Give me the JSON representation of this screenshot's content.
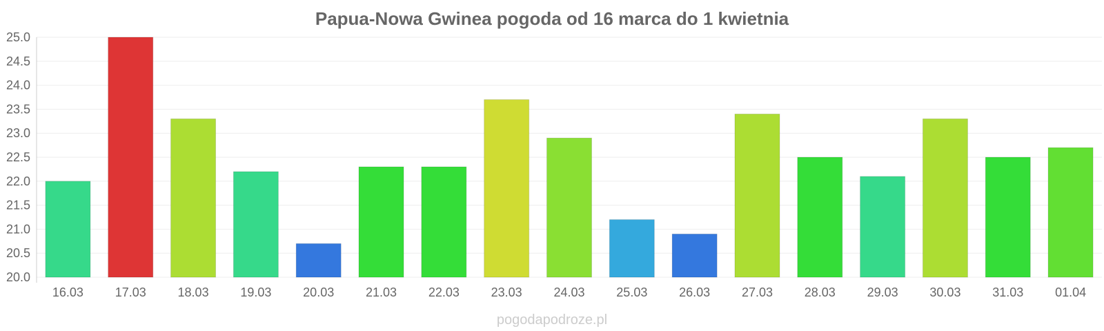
{
  "chart_data": {
    "type": "bar",
    "title": "Papua-Nowa Gwinea pogoda od 16 marca do 1 kwietnia",
    "xlabel": "",
    "ylabel": "",
    "categories": [
      "16.03",
      "17.03",
      "18.03",
      "19.03",
      "20.03",
      "21.03",
      "22.03",
      "23.03",
      "24.03",
      "25.03",
      "26.03",
      "27.03",
      "28.03",
      "29.03",
      "30.03",
      "31.03",
      "01.04"
    ],
    "values": [
      22.0,
      25.0,
      23.3,
      22.2,
      20.7,
      22.3,
      22.3,
      23.7,
      22.9,
      21.2,
      20.9,
      23.4,
      22.5,
      22.1,
      23.3,
      22.5,
      22.7
    ],
    "colors": [
      "#36d98a",
      "#de3535",
      "#acdd33",
      "#36d98a",
      "#3478de",
      "#34dd38",
      "#34dd38",
      "#cfdc33",
      "#8adf33",
      "#34a9dd",
      "#3478de",
      "#acdd33",
      "#34dd38",
      "#36d98a",
      "#acdd33",
      "#34dd38",
      "#62df33"
    ],
    "ylim": [
      20.0,
      25.0
    ],
    "yticks": [
      "20.0",
      "20.5",
      "21.0",
      "21.5",
      "22.0",
      "22.5",
      "23.0",
      "23.5",
      "24.0",
      "24.5",
      "25.0"
    ],
    "grid": true,
    "legend": "none"
  },
  "watermark": "pogodapodroze.pl"
}
